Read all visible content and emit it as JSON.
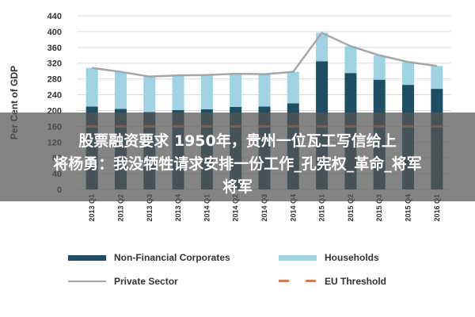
{
  "chart_data": {
    "type": "bar",
    "stacked": true,
    "ylabel": "Per Cent of GDP",
    "ylim": [
      0,
      440
    ],
    "yticks": [
      0,
      40,
      80,
      120,
      160,
      200,
      240,
      280,
      320,
      360,
      400,
      440
    ],
    "grid": true,
    "legend_position": "bottom",
    "categories": [
      "2013 Q1",
      "2013 Q2",
      "2013 Q3",
      "2013 Q4",
      "2014 Q1",
      "2014 Q2",
      "2014 Q3",
      "2014 Q4",
      "2015 Q1",
      "2015 Q2",
      "2015 Q3",
      "2015 Q4",
      "2016 Q1"
    ],
    "series": [
      {
        "name": "Non-Financial Corporates",
        "kind": "bar",
        "color": "#1d4e63",
        "values": [
          210,
          204,
          196,
          201,
          203,
          209,
          210,
          218,
          325,
          295,
          278,
          265,
          255
        ]
      },
      {
        "name": "Households",
        "kind": "bar",
        "color": "#9fd2e2",
        "values": [
          98,
          94,
          90,
          88,
          87,
          84,
          82,
          80,
          72,
          68,
          62,
          58,
          58
        ]
      },
      {
        "name": "Private Sector",
        "kind": "line",
        "color": "#a6a6a6",
        "values": [
          308,
          298,
          286,
          289,
          290,
          293,
          292,
          298,
          397,
          363,
          340,
          323,
          313
        ]
      },
      {
        "name": "EU Threshold",
        "kind": "dash",
        "color": "#e07a3f",
        "values": [
          160,
          160,
          160,
          160,
          160,
          160,
          160,
          160,
          160,
          160,
          160,
          160,
          160
        ]
      }
    ]
  },
  "overlay": {
    "line1": "股票融资要求 1950年，贵州一位瓦工写信给上",
    "line2": "将杨勇：我没牺牲请求安排一份工作_孔宪权_革命_将军",
    "line3": "将军"
  }
}
